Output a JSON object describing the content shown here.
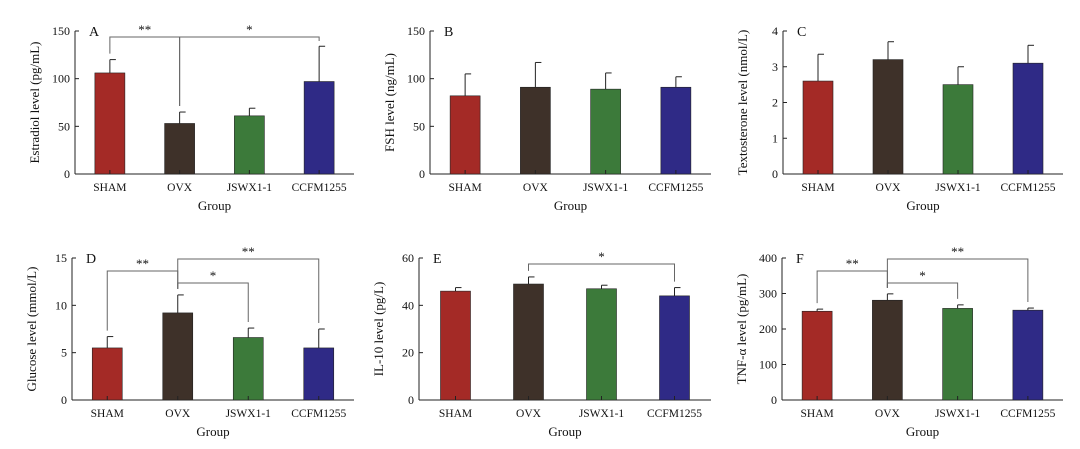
{
  "colors": {
    "SHAM": "#a42a26",
    "OVX": "#3e3129",
    "JSWX1-1": "#3c7a3a",
    "CCFM1255": "#2f2a86",
    "axis": "#222222",
    "bracket": "#666666"
  },
  "chart_data": [
    {
      "type": "bar",
      "panel": "A",
      "categories": [
        "SHAM",
        "OVX",
        "JSWX1-1",
        "CCFM1255"
      ],
      "values": [
        106,
        53,
        61,
        97
      ],
      "errors": [
        14,
        12,
        8,
        37
      ],
      "ylim": [
        0,
        150
      ],
      "yticks": [
        0,
        50,
        100,
        150
      ],
      "ylabel": "Estradiol level (pg/mL)",
      "xlabel": "Group",
      "brackets": [
        {
          "from": 0,
          "to": 1,
          "label": "**",
          "level": 0
        },
        {
          "from": 1,
          "to": 3,
          "label": "*",
          "level": 0
        }
      ]
    },
    {
      "type": "bar",
      "panel": "B",
      "categories": [
        "SHAM",
        "OVX",
        "JSWX1-1",
        "CCFM1255"
      ],
      "values": [
        82,
        91,
        89,
        91
      ],
      "errors": [
        23,
        26,
        17,
        11
      ],
      "ylim": [
        0,
        150
      ],
      "yticks": [
        0,
        50,
        100,
        150
      ],
      "ylabel": "FSH level (ng/mL)",
      "xlabel": "Group",
      "brackets": []
    },
    {
      "type": "bar",
      "panel": "C",
      "categories": [
        "SHAM",
        "OVX",
        "JSWX1-1",
        "CCFM1255"
      ],
      "values": [
        2.6,
        3.2,
        2.5,
        3.1
      ],
      "errors": [
        0.75,
        0.5,
        0.5,
        0.5
      ],
      "ylim": [
        0,
        4
      ],
      "yticks": [
        0,
        1,
        2,
        3,
        4
      ],
      "ylabel": "Textosterone level (nmol/L)",
      "xlabel": "Group",
      "brackets": []
    },
    {
      "type": "bar",
      "panel": "D",
      "categories": [
        "SHAM",
        "OVX",
        "JSWX1-1",
        "CCFM1255"
      ],
      "values": [
        5.5,
        9.2,
        6.6,
        5.5
      ],
      "errors": [
        1.2,
        1.9,
        1.0,
        2.0
      ],
      "ylim": [
        0,
        15
      ],
      "yticks": [
        0,
        5,
        10,
        15
      ],
      "ylabel": "Glucose level (mmol/L)",
      "xlabel": "Group",
      "brackets": [
        {
          "from": 0,
          "to": 1,
          "label": "**",
          "level": 1
        },
        {
          "from": 1,
          "to": 2,
          "label": "*",
          "level": 0
        },
        {
          "from": 1,
          "to": 3,
          "label": "**",
          "level": 2
        }
      ]
    },
    {
      "type": "bar",
      "panel": "E",
      "categories": [
        "SHAM",
        "OVX",
        "JSWX1-1",
        "CCFM1255"
      ],
      "values": [
        46,
        49,
        47,
        44
      ],
      "errors": [
        1.5,
        3,
        1.5,
        3.5
      ],
      "ylim": [
        0,
        60
      ],
      "yticks": [
        0,
        20,
        40,
        60
      ],
      "ylabel": "IL-10 level (pg/L)",
      "xlabel": "Group",
      "brackets": [
        {
          "from": 1,
          "to": 3,
          "label": "*",
          "level": 0
        }
      ]
    },
    {
      "type": "bar",
      "panel": "F",
      "categories": [
        "SHAM",
        "OVX",
        "JSWX1-1",
        "CCFM1255"
      ],
      "values": [
        250,
        281,
        258,
        253
      ],
      "errors": [
        6,
        18,
        10,
        6
      ],
      "ylim": [
        0,
        400
      ],
      "yticks": [
        0,
        100,
        200,
        300,
        400
      ],
      "ylabel": "TNF-α level (pg/mL)",
      "xlabel": "Group",
      "brackets": [
        {
          "from": 0,
          "to": 1,
          "label": "**",
          "level": 1
        },
        {
          "from": 1,
          "to": 2,
          "label": "*",
          "level": 0
        },
        {
          "from": 1,
          "to": 3,
          "label": "**",
          "level": 2
        }
      ]
    }
  ]
}
